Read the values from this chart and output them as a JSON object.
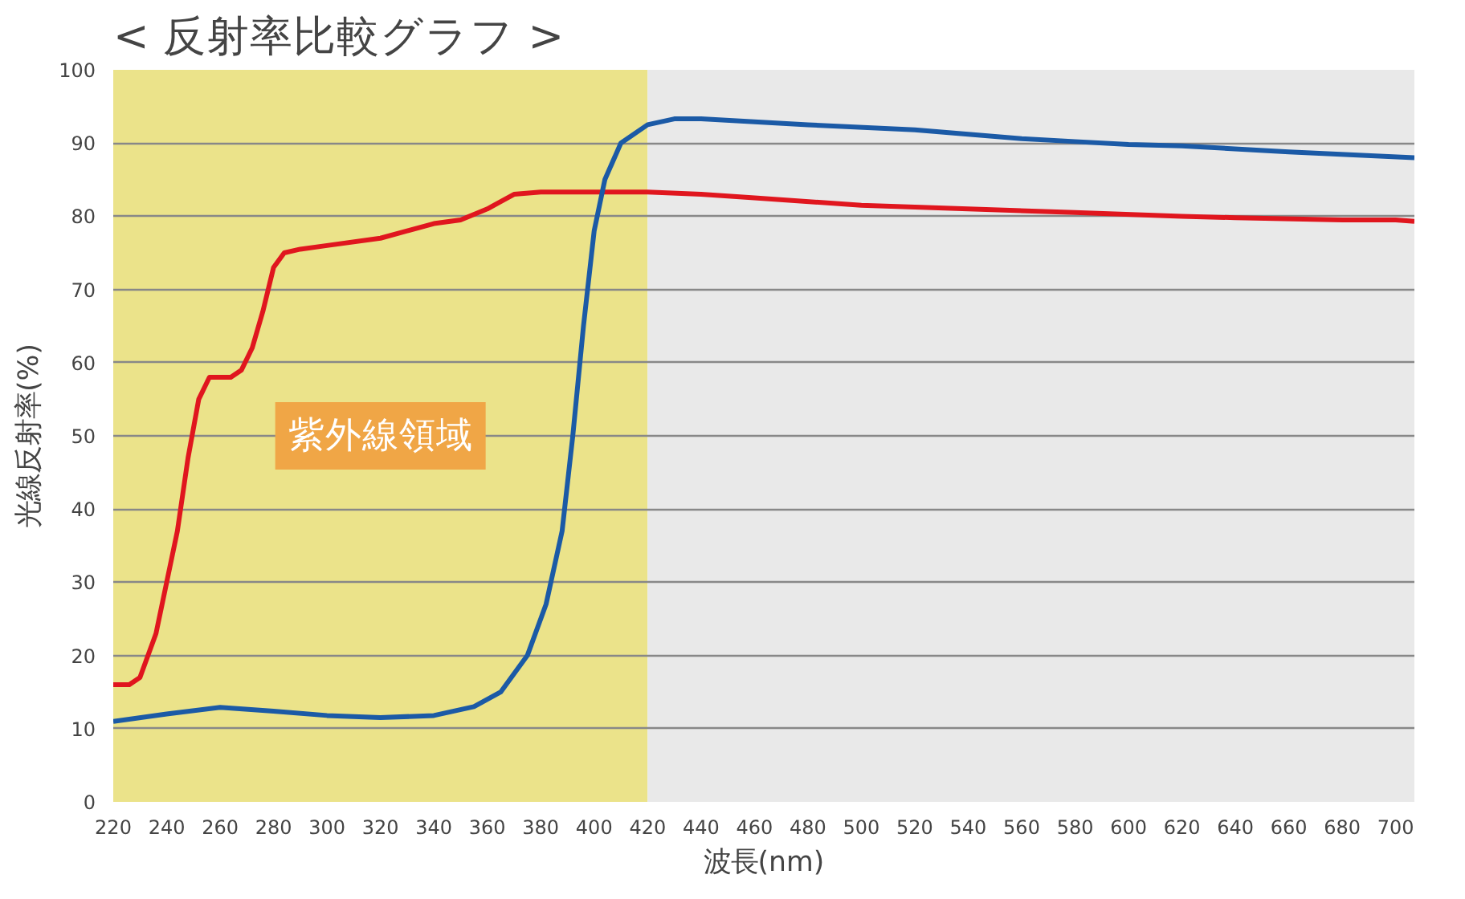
{
  "chart_data": {
    "type": "line",
    "title": "< 反射率比較グラフ >",
    "xlabel": "波長(nm)",
    "ylabel": "光線反射率(%)",
    "xlim": [
      220,
      707
    ],
    "ylim": [
      0,
      100
    ],
    "xticks": [
      220,
      240,
      260,
      280,
      300,
      320,
      340,
      360,
      380,
      400,
      420,
      440,
      460,
      480,
      500,
      520,
      540,
      560,
      580,
      600,
      620,
      640,
      660,
      680,
      700
    ],
    "yticks": [
      0,
      10,
      20,
      30,
      40,
      50,
      60,
      70,
      80,
      90,
      100
    ],
    "grid": "y",
    "marker": "none",
    "line_style": "solid",
    "bands": [
      {
        "axis": "x",
        "from": 220,
        "to": 420,
        "label": "紫外線領域",
        "color": "#ebe38a"
      },
      {
        "axis": "x",
        "from": 420,
        "to": 707,
        "label": null,
        "color": "#e9e9e9"
      }
    ],
    "series": [
      {
        "color": "#e0161e",
        "x": [
          220,
          226,
          230,
          236,
          240,
          244,
          248,
          252,
          256,
          264,
          268,
          272,
          276,
          280,
          284,
          290,
          300,
          320,
          330,
          340,
          350,
          360,
          370,
          380,
          420,
          440,
          460,
          500,
          540,
          580,
          620,
          640,
          680,
          700,
          707
        ],
        "values": [
          16,
          16,
          17,
          23,
          30,
          37,
          47,
          55,
          58,
          58,
          59,
          62,
          67,
          73,
          75,
          75.5,
          76,
          77,
          78,
          79,
          79.5,
          81,
          83,
          83.3,
          83.3,
          83,
          82.5,
          81.5,
          81,
          80.5,
          80,
          79.8,
          79.5,
          79.5,
          79.3
        ]
      },
      {
        "color": "#1b5aa6",
        "x": [
          220,
          240,
          260,
          280,
          300,
          320,
          340,
          355,
          365,
          375,
          382,
          388,
          392,
          396,
          400,
          404,
          410,
          420,
          430,
          440,
          480,
          520,
          540,
          560,
          580,
          600,
          620,
          660,
          707
        ],
        "values": [
          11,
          12,
          12.9,
          12.4,
          11.8,
          11.5,
          11.8,
          13,
          15,
          20,
          27,
          37,
          50,
          65,
          78,
          85,
          90,
          92.5,
          93.3,
          93.3,
          92.5,
          91.8,
          91.2,
          90.6,
          90.2,
          89.8,
          89.6,
          88.8,
          88
        ]
      }
    ]
  }
}
